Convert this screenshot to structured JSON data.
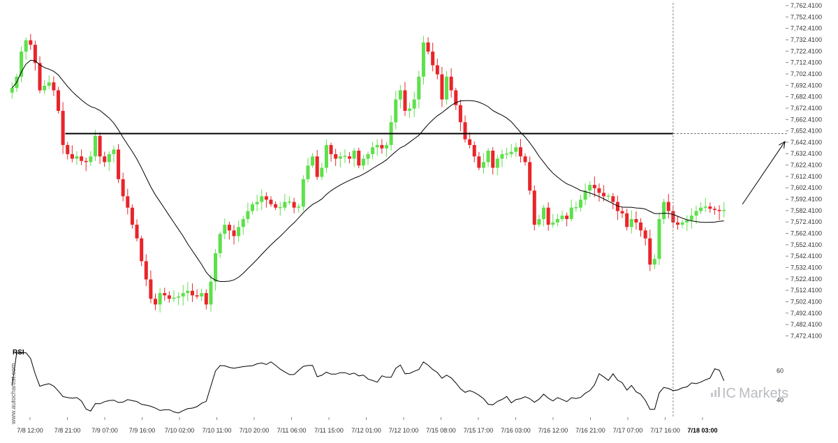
{
  "chart_data": {
    "type": "candlestick",
    "price_panel": {
      "ylim": [
        7468.41,
        7762.41
      ],
      "y_ticks": [
        "7,762.4100",
        "7,752.4100",
        "7,742.4100",
        "7,732.4100",
        "7,722.4100",
        "7,712.4100",
        "7,702.4100",
        "7,692.4100",
        "7,682.4100",
        "7,672.4100",
        "7,662.4100",
        "7,652.4100",
        "7,642.4100",
        "7,632.4100",
        "7,622.4100",
        "7,612.4100",
        "7,602.4100",
        "7,592.4100",
        "7,582.4100",
        "7,572.4100",
        "7,562.4100",
        "7,552.4100",
        "7,542.4100",
        "7,532.4100",
        "7,522.4100",
        "7,512.4100",
        "7,502.4100",
        "7,492.4100",
        "7,482.4100",
        "7,472.4100"
      ],
      "y_tick_values": [
        7762.41,
        7752.41,
        7742.41,
        7732.41,
        7722.41,
        7712.41,
        7702.41,
        7692.41,
        7682.41,
        7672.41,
        7662.41,
        7652.41,
        7642.41,
        7632.41,
        7622.41,
        7612.41,
        7602.41,
        7592.41,
        7582.41,
        7572.41,
        7562.41,
        7552.41,
        7542.41,
        7532.41,
        7522.41,
        7512.41,
        7502.41,
        7492.41,
        7482.41,
        7472.41
      ],
      "closes": [
        7690,
        7700,
        7722,
        7732,
        7728,
        7712,
        7688,
        7692,
        7695,
        7688,
        7670,
        7640,
        7632,
        7628,
        7630,
        7626,
        7625,
        7630,
        7648,
        7630,
        7625,
        7632,
        7636,
        7610,
        7595,
        7585,
        7570,
        7558,
        7538,
        7522,
        7505,
        7500,
        7510,
        7508,
        7505,
        7506,
        7507,
        7510,
        7512,
        7508,
        7507,
        7510,
        7500,
        7520,
        7545,
        7562,
        7570,
        7565,
        7560,
        7568,
        7575,
        7582,
        7588,
        7590,
        7595,
        7592,
        7588,
        7585,
        7585,
        7590,
        7590,
        7585,
        7586,
        7610,
        7622,
        7630,
        7612,
        7620,
        7640,
        7632,
        7628,
        7630,
        7630,
        7628,
        7635,
        7622,
        7628,
        7632,
        7638,
        7640,
        7637,
        7640,
        7660,
        7680,
        7688,
        7670,
        7672,
        7680,
        7700,
        7730,
        7722,
        7710,
        7702,
        7680,
        7700,
        7688,
        7675,
        7660,
        7645,
        7640,
        7630,
        7620,
        7625,
        7635,
        7620,
        7628,
        7632,
        7632,
        7634,
        7638,
        7630,
        7625,
        7600,
        7570,
        7575,
        7585,
        7570,
        7572,
        7575,
        7578,
        7575,
        7585,
        7585,
        7592,
        7600,
        7605,
        7602,
        7598,
        7595,
        7595,
        7590,
        7582,
        7580,
        7568,
        7575,
        7572,
        7565,
        7558,
        7535,
        7540,
        7575,
        7590,
        7582,
        7572,
        7570,
        7572,
        7574,
        7578,
        7582,
        7585,
        7586,
        7584,
        7583,
        7582,
        7583
      ],
      "moving_average_label": "",
      "horizontal_level": 7650.0,
      "projection": {
        "from_index": 158,
        "from_value": 7588,
        "to_value": 7643
      }
    },
    "rsi_panel": {
      "label": "RSI",
      "ylim": [
        32,
        68
      ],
      "ticks": [
        60,
        40
      ],
      "tick_labels": [
        "60",
        "40"
      ]
    },
    "x_tick_labels": [
      "7/8 12:00",
      "7/8 21:00",
      "7/9 07:00",
      "7/9 16:00",
      "7/10 02:00",
      "7/10 11:00",
      "7/10 20:00",
      "7/11 06:00",
      "7/11 15:00",
      "7/12 01:00",
      "7/12 10:00",
      "7/15 08:00",
      "7/15 17:00",
      "7/16 03:00",
      "7/16 12:00",
      "7/16 21:00",
      "7/17 07:00",
      "7/17 16:00",
      "7/18 03:00"
    ],
    "colors": {
      "up": "#5ee04c",
      "down": "#e8252a",
      "line": "#000000",
      "grid_text": "#333333"
    }
  },
  "watermark": "www.autochartist.com",
  "brand": {
    "prefix": "IC",
    "name": "Markets"
  }
}
